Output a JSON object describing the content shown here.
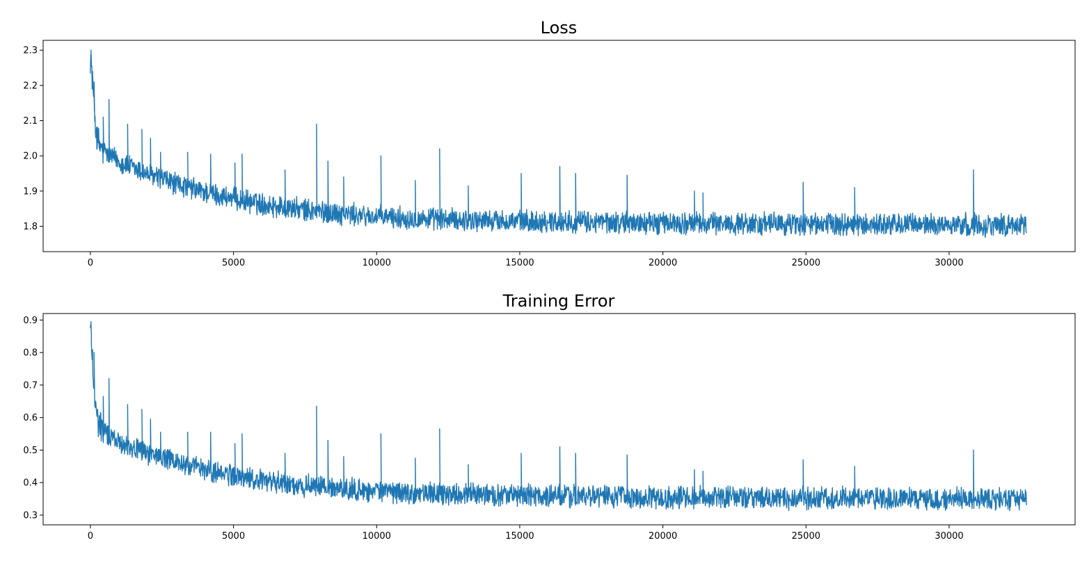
{
  "chart_data": [
    {
      "type": "line",
      "title": "Loss",
      "xlim": [
        -1650,
        34400
      ],
      "ylim": [
        1.728,
        2.328
      ],
      "xticks": [
        0,
        5000,
        10000,
        15000,
        20000,
        25000,
        30000
      ],
      "xtick_labels": [
        "0",
        "5000",
        "10000",
        "15000",
        "20000",
        "25000",
        "30000"
      ],
      "yticks": [
        1.8,
        1.9,
        2.0,
        2.1,
        2.2,
        2.3
      ],
      "ytick_labels": [
        "1.8",
        "1.9",
        "2.0",
        "2.1",
        "2.2",
        "2.3"
      ],
      "grid": false,
      "color": "#1f77b4",
      "series": [
        {
          "x": [
            0,
            50,
            100,
            150,
            200,
            250,
            300,
            400,
            500,
            600,
            700,
            800,
            1000,
            1200,
            1500,
            1800,
            2000,
            2500,
            3000,
            3500,
            4000,
            4500,
            5000,
            5500,
            6000,
            6500,
            7000,
            7500,
            8000,
            8500,
            9000,
            9500,
            10000,
            11000,
            12000,
            13000,
            14000,
            15000,
            16000,
            17000,
            18000,
            19000,
            20000,
            21000,
            22000,
            23000,
            24000,
            25000,
            26000,
            27000,
            28000,
            29000,
            30000,
            31000,
            32000,
            32700
          ],
          "y": [
            2.29,
            2.24,
            2.18,
            2.12,
            2.07,
            2.04,
            2.03,
            2.02,
            2.01,
            2.005,
            2.0,
            1.995,
            1.985,
            1.975,
            1.965,
            1.955,
            1.948,
            1.935,
            1.92,
            1.908,
            1.897,
            1.887,
            1.878,
            1.87,
            1.863,
            1.857,
            1.851,
            1.846,
            1.842,
            1.838,
            1.834,
            1.83,
            1.827,
            1.823,
            1.82,
            1.818,
            1.816,
            1.814,
            1.813,
            1.812,
            1.811,
            1.81,
            1.809,
            1.808,
            1.808,
            1.807,
            1.807,
            1.806,
            1.806,
            1.805,
            1.805,
            1.805,
            1.804,
            1.804,
            1.804,
            1.804
          ]
        }
      ],
      "noise_amplitude": 0.028,
      "spikes": [
        {
          "x": 20,
          "y": 2.3
        },
        {
          "x": 130,
          "y": 2.21
        },
        {
          "x": 450,
          "y": 2.11
        },
        {
          "x": 650,
          "y": 2.16
        },
        {
          "x": 1300,
          "y": 2.09
        },
        {
          "x": 1800,
          "y": 2.075
        },
        {
          "x": 2100,
          "y": 2.05
        },
        {
          "x": 2450,
          "y": 2.01
        },
        {
          "x": 3400,
          "y": 2.01
        },
        {
          "x": 4200,
          "y": 2.005
        },
        {
          "x": 5300,
          "y": 2.005
        },
        {
          "x": 5050,
          "y": 1.98
        },
        {
          "x": 6800,
          "y": 1.96
        },
        {
          "x": 7900,
          "y": 2.09
        },
        {
          "x": 8300,
          "y": 1.985
        },
        {
          "x": 8850,
          "y": 1.94
        },
        {
          "x": 10150,
          "y": 2.0
        },
        {
          "x": 11350,
          "y": 1.93
        },
        {
          "x": 12200,
          "y": 2.02
        },
        {
          "x": 13200,
          "y": 1.915
        },
        {
          "x": 15050,
          "y": 1.95
        },
        {
          "x": 16400,
          "y": 1.97
        },
        {
          "x": 16950,
          "y": 1.95
        },
        {
          "x": 18750,
          "y": 1.945
        },
        {
          "x": 21100,
          "y": 1.9
        },
        {
          "x": 21400,
          "y": 1.895
        },
        {
          "x": 24900,
          "y": 1.925
        },
        {
          "x": 26700,
          "y": 1.91
        },
        {
          "x": 30850,
          "y": 1.96
        }
      ]
    },
    {
      "type": "line",
      "title": "Training Error",
      "xlim": [
        -1650,
        34400
      ],
      "ylim": [
        0.27,
        0.92
      ],
      "xticks": [
        0,
        5000,
        10000,
        15000,
        20000,
        25000,
        30000
      ],
      "xtick_labels": [
        "0",
        "5000",
        "10000",
        "15000",
        "20000",
        "25000",
        "30000"
      ],
      "yticks": [
        0.3,
        0.4,
        0.5,
        0.6,
        0.7,
        0.8,
        0.9
      ],
      "ytick_labels": [
        "0.3",
        "0.4",
        "0.5",
        "0.6",
        "0.7",
        "0.8",
        "0.9"
      ],
      "grid": false,
      "color": "#1f77b4",
      "series": [
        {
          "x": [
            0,
            50,
            100,
            150,
            200,
            250,
            300,
            400,
            500,
            600,
            700,
            800,
            1000,
            1200,
            1500,
            1800,
            2000,
            2500,
            3000,
            3500,
            4000,
            4500,
            5000,
            5500,
            6000,
            6500,
            7000,
            7500,
            8000,
            8500,
            9000,
            9500,
            10000,
            11000,
            12000,
            13000,
            14000,
            15000,
            16000,
            17000,
            18000,
            19000,
            20000,
            21000,
            22000,
            23000,
            24000,
            25000,
            26000,
            27000,
            28000,
            29000,
            30000,
            31000,
            32000,
            32700
          ],
          "y": [
            0.88,
            0.82,
            0.74,
            0.67,
            0.62,
            0.59,
            0.575,
            0.565,
            0.555,
            0.548,
            0.542,
            0.536,
            0.527,
            0.519,
            0.508,
            0.498,
            0.492,
            0.477,
            0.463,
            0.45,
            0.44,
            0.43,
            0.421,
            0.413,
            0.406,
            0.4,
            0.395,
            0.39,
            0.386,
            0.382,
            0.379,
            0.376,
            0.373,
            0.369,
            0.366,
            0.364,
            0.362,
            0.36,
            0.359,
            0.358,
            0.357,
            0.356,
            0.355,
            0.354,
            0.354,
            0.353,
            0.353,
            0.352,
            0.352,
            0.351,
            0.351,
            0.351,
            0.35,
            0.35,
            0.35,
            0.35
          ]
        }
      ],
      "noise_amplitude": 0.03,
      "spikes": [
        {
          "x": 20,
          "y": 0.895
        },
        {
          "x": 130,
          "y": 0.8
        },
        {
          "x": 450,
          "y": 0.665
        },
        {
          "x": 650,
          "y": 0.72
        },
        {
          "x": 1300,
          "y": 0.64
        },
        {
          "x": 1800,
          "y": 0.625
        },
        {
          "x": 2100,
          "y": 0.595
        },
        {
          "x": 2450,
          "y": 0.555
        },
        {
          "x": 3400,
          "y": 0.555
        },
        {
          "x": 4200,
          "y": 0.555
        },
        {
          "x": 5300,
          "y": 0.55
        },
        {
          "x": 5050,
          "y": 0.52
        },
        {
          "x": 6800,
          "y": 0.49
        },
        {
          "x": 7900,
          "y": 0.635
        },
        {
          "x": 8300,
          "y": 0.53
        },
        {
          "x": 8850,
          "y": 0.48
        },
        {
          "x": 10150,
          "y": 0.55
        },
        {
          "x": 11350,
          "y": 0.475
        },
        {
          "x": 12200,
          "y": 0.565
        },
        {
          "x": 13200,
          "y": 0.455
        },
        {
          "x": 15050,
          "y": 0.49
        },
        {
          "x": 16400,
          "y": 0.51
        },
        {
          "x": 16950,
          "y": 0.49
        },
        {
          "x": 18750,
          "y": 0.485
        },
        {
          "x": 21100,
          "y": 0.44
        },
        {
          "x": 21400,
          "y": 0.435
        },
        {
          "x": 24900,
          "y": 0.47
        },
        {
          "x": 26700,
          "y": 0.45
        },
        {
          "x": 30850,
          "y": 0.5
        }
      ]
    }
  ]
}
